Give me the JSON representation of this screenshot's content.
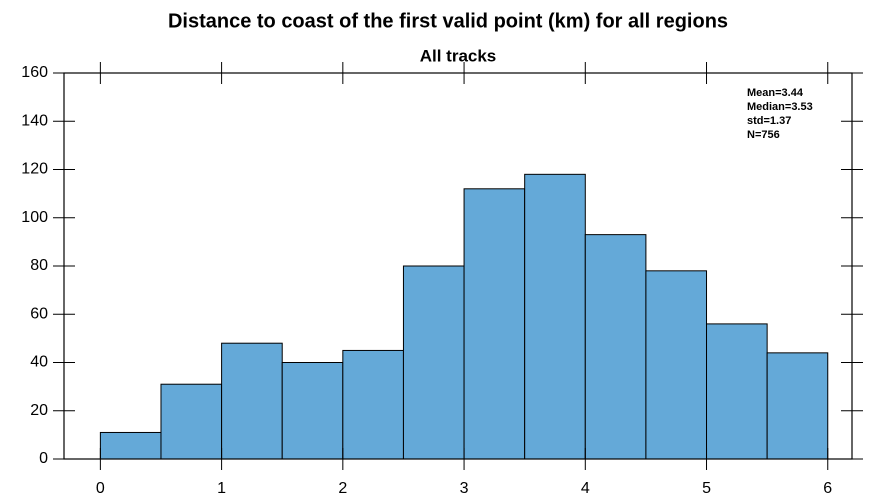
{
  "chart_data": {
    "type": "histogram",
    "title": "Distance to coast of the first valid point (km) for all regions",
    "subtitle": "All tracks",
    "bins": [
      0,
      0.5,
      1,
      1.5,
      2,
      2.5,
      3,
      3.5,
      4,
      4.5,
      5,
      5.5,
      6
    ],
    "values": [
      11,
      31,
      48,
      40,
      45,
      80,
      112,
      118,
      93,
      78,
      56,
      44
    ],
    "color": "#64a9d8",
    "xlim": [
      -0.3,
      6.2
    ],
    "xticks": [
      0,
      1,
      2,
      3,
      4,
      5,
      6
    ],
    "ylim": [
      0,
      160
    ],
    "yticks": [
      0,
      20,
      40,
      60,
      80,
      100,
      120,
      140,
      160
    ],
    "annotations": [
      "Mean=3.44",
      "Median=3.53",
      "std=1.37",
      "N=756"
    ]
  }
}
